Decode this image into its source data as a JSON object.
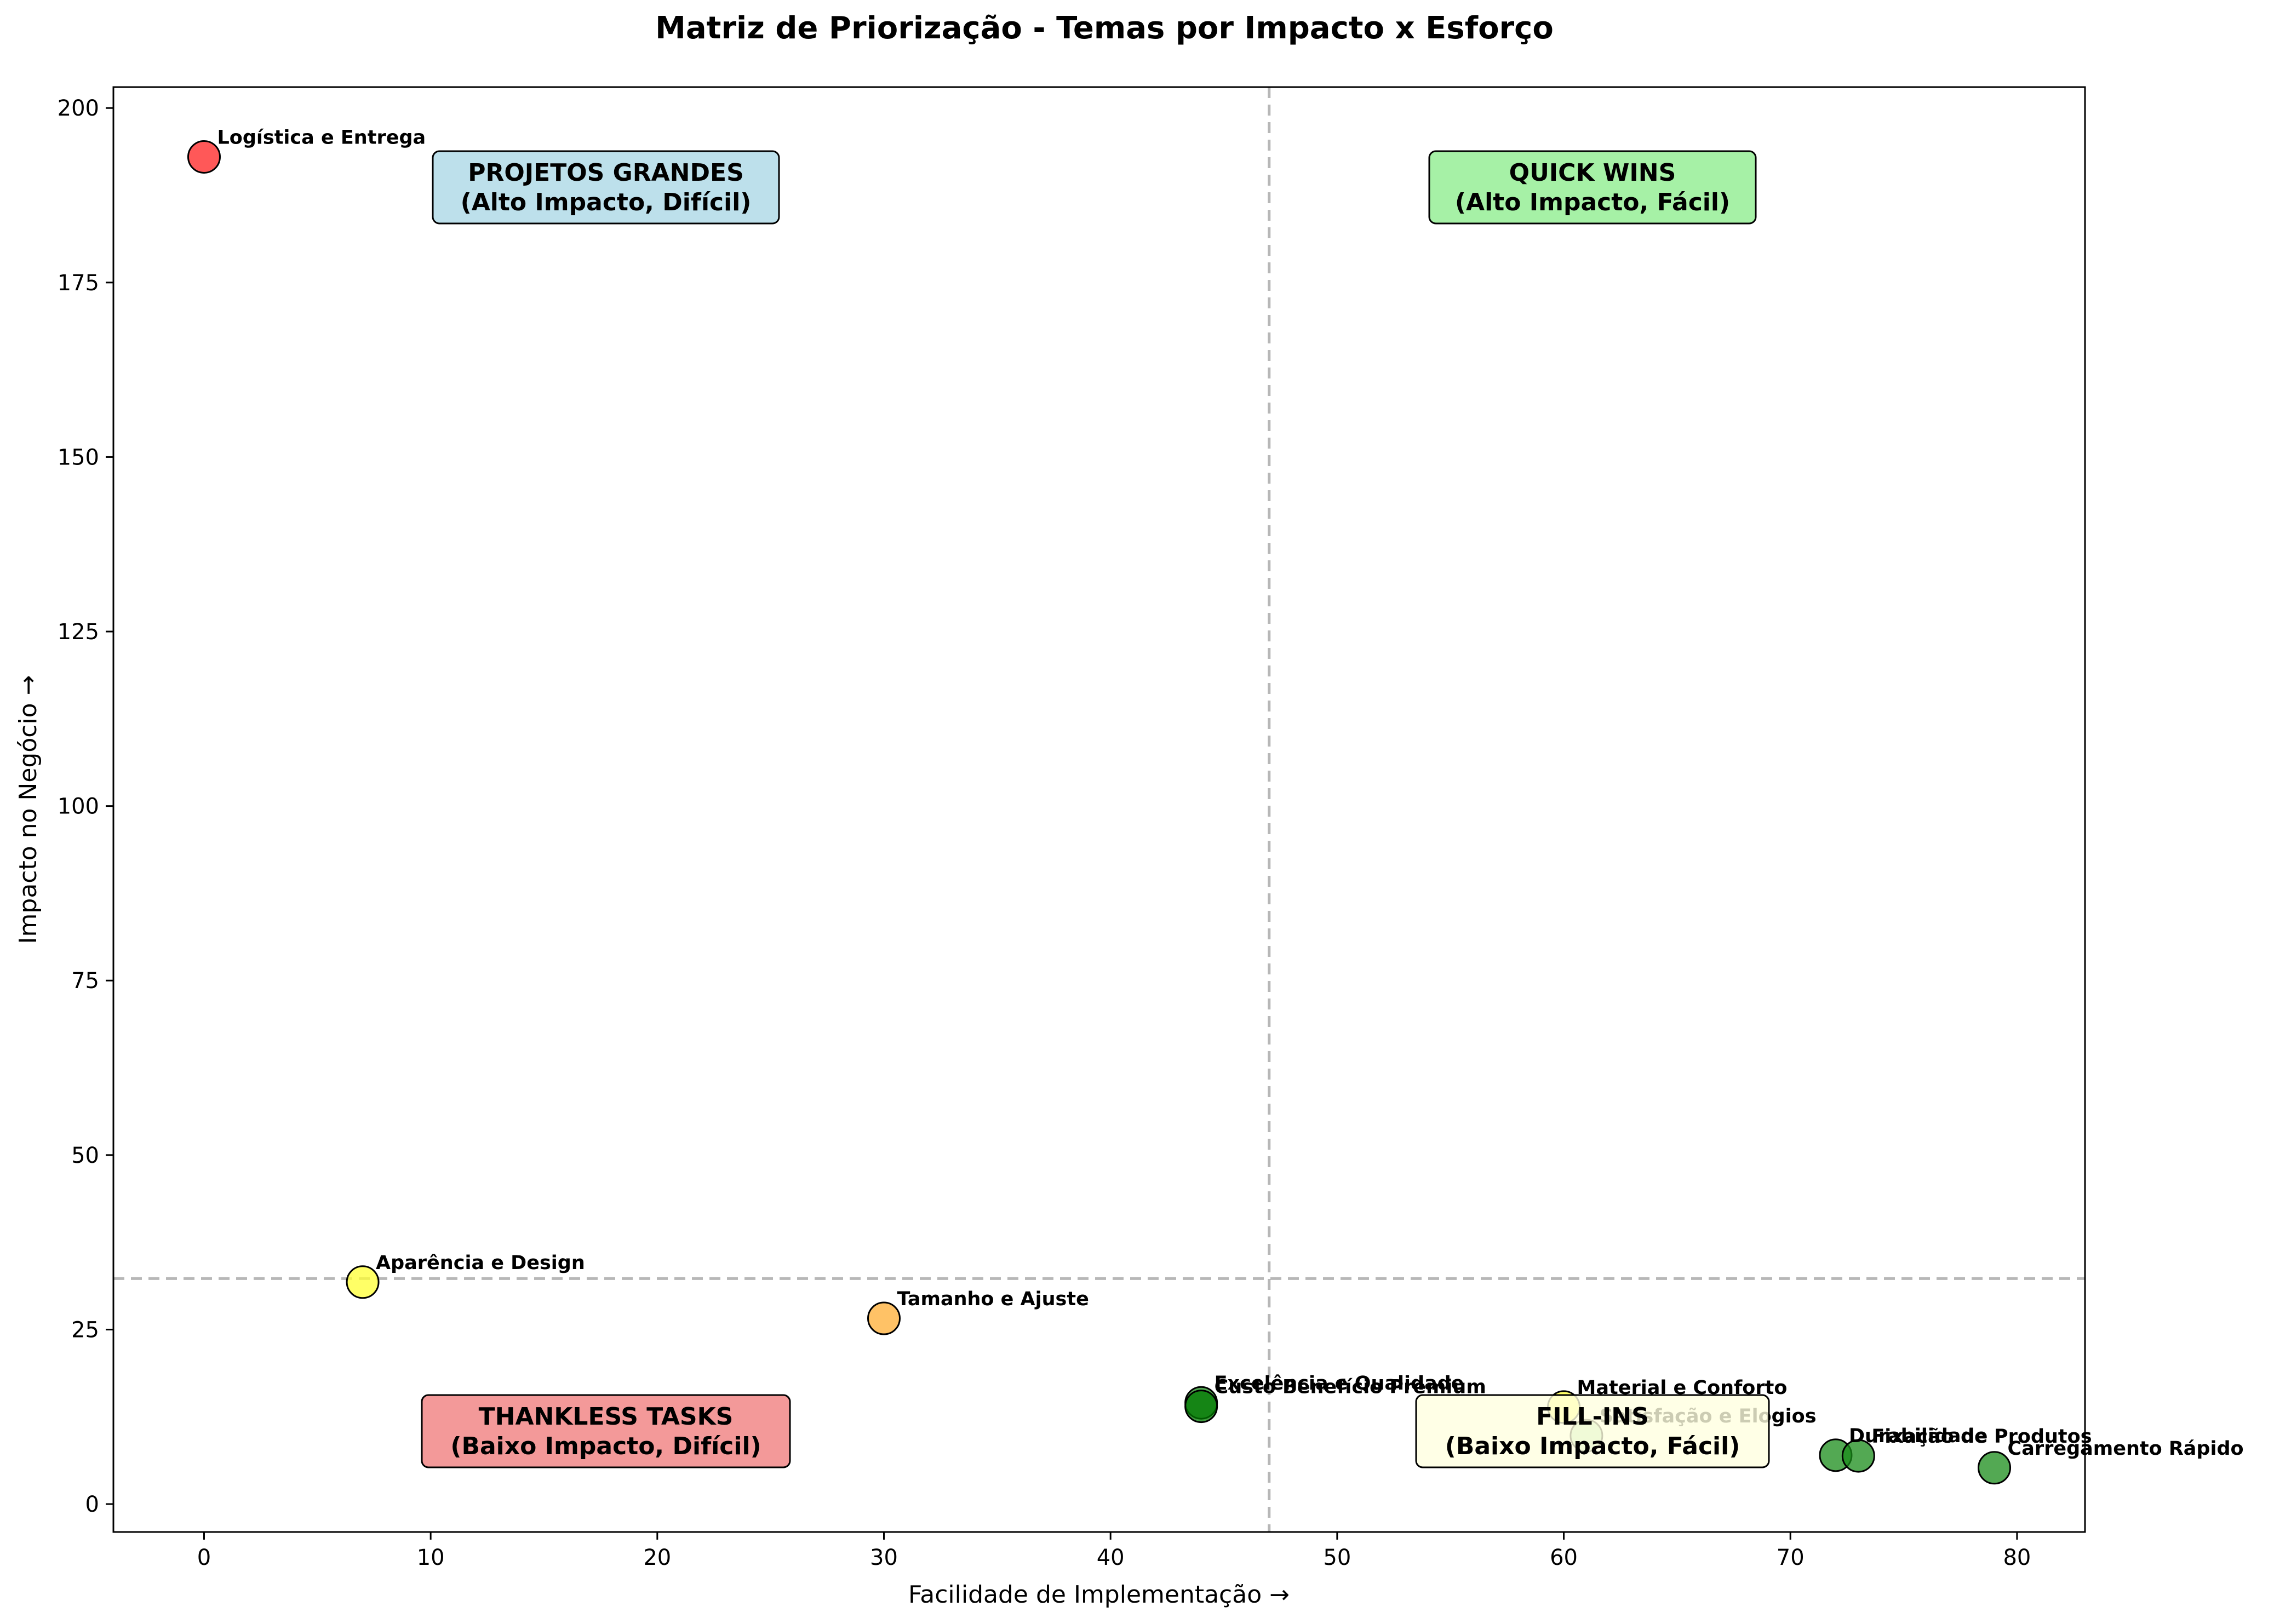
{
  "chart_data": {
    "type": "scatter",
    "title": "Matriz de Priorização - Temas por Impacto x Esforço",
    "xlabel": "Facilidade de Implementação →",
    "ylabel": "Impacto no Negócio →",
    "xlim": [
      -4,
      83
    ],
    "ylim": [
      -4,
      203
    ],
    "xticks": [
      0,
      10,
      20,
      30,
      40,
      50,
      60,
      70,
      80
    ],
    "yticks": [
      0,
      25,
      50,
      75,
      100,
      125,
      150,
      175,
      200
    ],
    "grid": false,
    "divider_x": 47,
    "divider_y": 32.3,
    "points": [
      {
        "label": "Logística e Entrega",
        "x": 0,
        "y": 193,
        "color": "#ff2020"
      },
      {
        "label": "Aparência e Design",
        "x": 7,
        "y": 31.8,
        "color": "#ffff33"
      },
      {
        "label": "Tamanho e Ajuste",
        "x": 30,
        "y": 26.6,
        "color": "#ffad33"
      },
      {
        "label": "Excelência e Qualidade",
        "x": 44,
        "y": 14.5,
        "color": "#1a8c1a"
      },
      {
        "label": "Custo Benefício Premium",
        "x": 44,
        "y": 14.0,
        "color": "#007a00"
      },
      {
        "label": "Material e Conforto",
        "x": 60,
        "y": 13.9,
        "color": "#ffff33"
      },
      {
        "label": "Satisfação e Elogios",
        "x": 61,
        "y": 9.8,
        "color": "#99dd99"
      },
      {
        "label": "Durabilidade",
        "x": 72,
        "y": 7.0,
        "color": "#1a8c1a"
      },
      {
        "label": "Fixação de Produtos",
        "x": 73,
        "y": 6.9,
        "color": "#1a8c1a"
      },
      {
        "label": "Carregamento Rápido",
        "x": 79,
        "y": 5.2,
        "color": "#1a8c1a"
      }
    ],
    "quadrants": [
      {
        "title": "PROJETOS GRANDES",
        "subtitle": "(Alto Impacto, Difícil)",
        "color": "#add8e6"
      },
      {
        "title": "QUICK WINS",
        "subtitle": "(Alto Impacto, Fácil)",
        "color": "#90ee90"
      },
      {
        "title": "THANKLESS TASKS",
        "subtitle": "(Baixo Impacto, Difícil)",
        "color": "#f08080"
      },
      {
        "title": "FILL-INS",
        "subtitle": "(Baixo Impacto, Fácil)",
        "color": "#ffffe0"
      }
    ]
  }
}
